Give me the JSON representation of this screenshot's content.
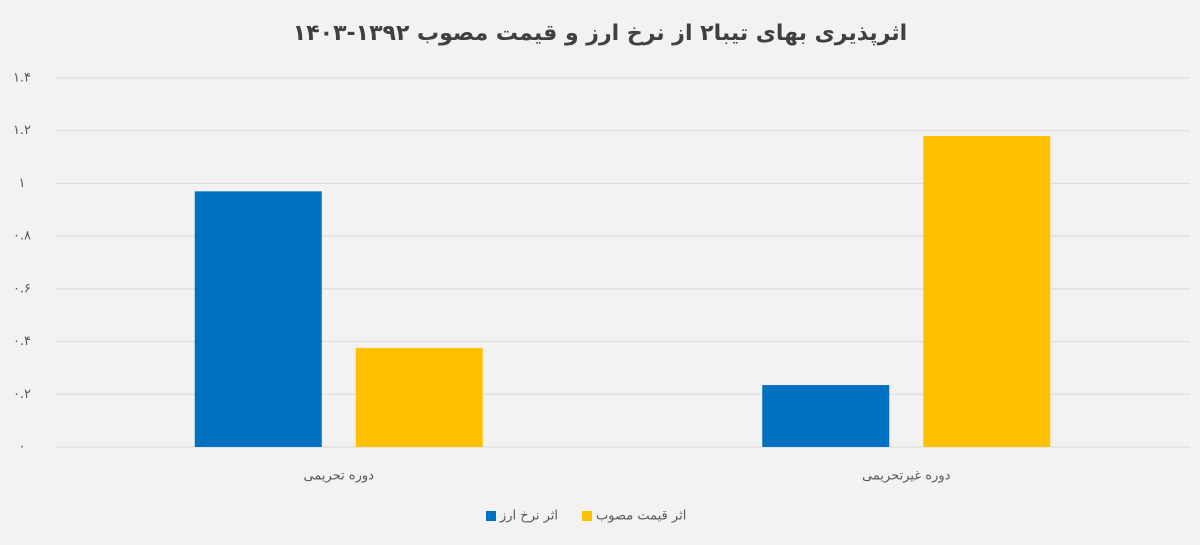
{
  "chart_data": {
    "type": "bar",
    "title": "اثرپذیری بهای تیبا۲ از نرخ ارز و قیمت مصوب ۱۳۹۲-۱۴۰۳",
    "categories": [
      "دوره تحریمی",
      "دوره غیرتحریمی"
    ],
    "series": [
      {
        "name": "اثر نرخ ارز",
        "color": "#0070c0",
        "values": [
          0.97,
          0.235
        ]
      },
      {
        "name": "اثر قیمت مصوب",
        "color": "#ffc000",
        "values": [
          0.376,
          1.18
        ]
      }
    ],
    "ylim": [
      0,
      1.4
    ],
    "yticks": [
      {
        "value": 0,
        "label": "۰"
      },
      {
        "value": 0.2,
        "label": "۰.۲"
      },
      {
        "value": 0.4,
        "label": "۰.۴"
      },
      {
        "value": 0.6,
        "label": "۰.۶"
      },
      {
        "value": 0.8,
        "label": "۰.۸"
      },
      {
        "value": 1,
        "label": "۱"
      },
      {
        "value": 1.2,
        "label": "۱.۲"
      },
      {
        "value": 1.4,
        "label": "۱.۴"
      }
    ],
    "grid": true
  }
}
